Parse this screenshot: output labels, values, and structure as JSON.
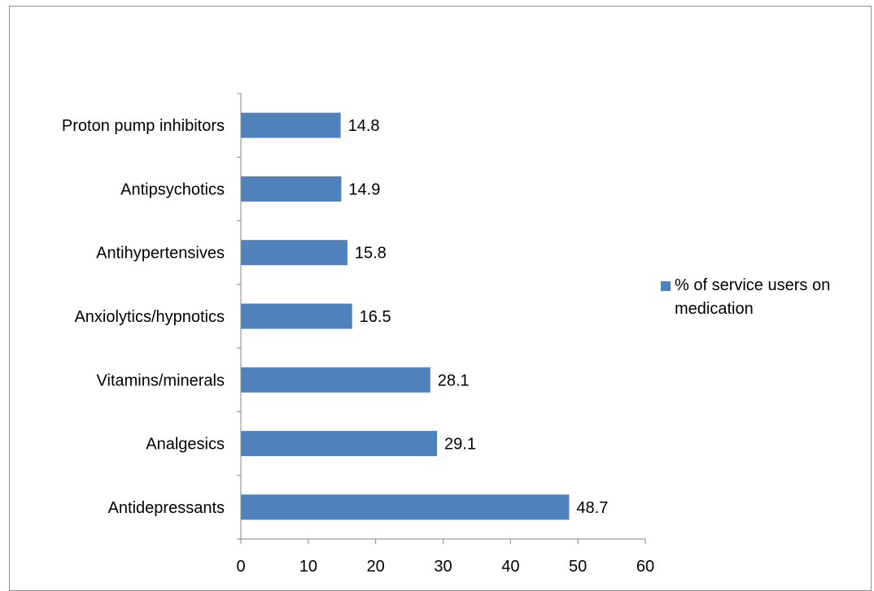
{
  "chart_data": {
    "type": "bar",
    "orientation": "horizontal",
    "categories": [
      "Antidepressants",
      "Analgesics",
      "Vitamins/minerals",
      "Anxiolytics/hypnotics",
      "Antihypertensives",
      "Antipsychotics",
      "Proton pump inhibitors"
    ],
    "series": [
      {
        "name": "% of service users on medication",
        "legend_lines": [
          "% of service users on",
          "medication"
        ],
        "values": [
          48.7,
          29.1,
          28.1,
          16.5,
          15.8,
          14.9,
          14.8
        ],
        "data_labels": [
          "48.7",
          "29.1",
          "28.1",
          "16.5",
          "15.8",
          "14.9",
          "14.8"
        ],
        "color": "#4f81bd"
      }
    ],
    "xlim": [
      0,
      60
    ],
    "xticks": [
      0,
      10,
      20,
      30,
      40,
      50,
      60
    ],
    "title": "",
    "xlabel": "",
    "ylabel": "",
    "grid": false,
    "legend_position": "right",
    "axis_color": "#868686"
  }
}
